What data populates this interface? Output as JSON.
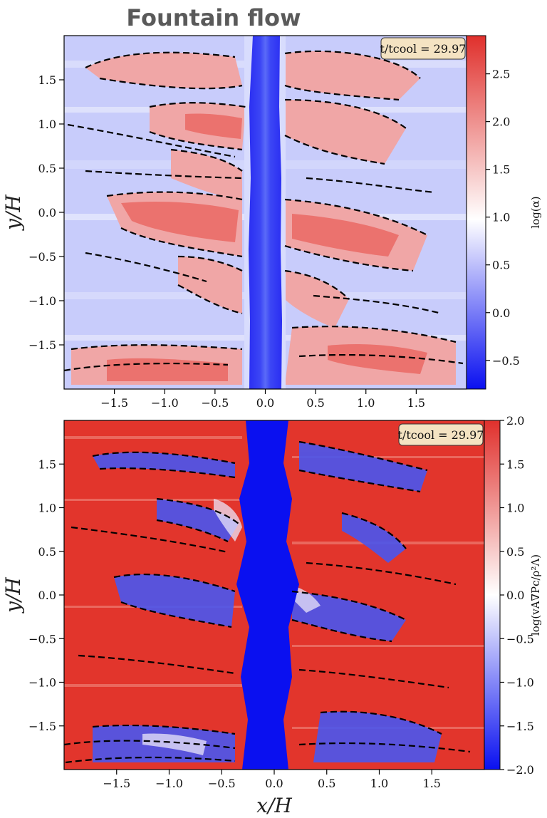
{
  "title": "Fountain flow",
  "chart_data": [
    {
      "type": "heatmap",
      "panel": "top",
      "xlim": [
        -2.0,
        2.0
      ],
      "ylim": [
        -2.0,
        2.0
      ],
      "x_ticks": [
        -1.5,
        -1.0,
        -0.5,
        0.0,
        0.5,
        1.0,
        1.5
      ],
      "y_ticks": [
        -1.5,
        -1.0,
        -0.5,
        0.0,
        0.5,
        1.0,
        1.5
      ],
      "xlabel": "",
      "ylabel": "y/H",
      "annotation": "t/tcool = 29.97",
      "colorbar": {
        "label": "log(α)",
        "range": [
          -0.8,
          2.9
        ],
        "ticks": [
          -0.5,
          0.0,
          0.5,
          1.0,
          1.5,
          2.0,
          2.5
        ],
        "colors": [
          "#0a10f0",
          "#ffffff",
          "#e0302c"
        ]
      },
      "contours": "dashed black"
    },
    {
      "type": "heatmap",
      "panel": "bottom",
      "xlim": [
        -2.0,
        2.0
      ],
      "ylim": [
        -2.0,
        2.0
      ],
      "x_ticks": [
        -1.5,
        -1.0,
        -0.5,
        0.0,
        0.5,
        1.0,
        1.5
      ],
      "y_ticks": [
        -1.5,
        -1.0,
        -0.5,
        0.0,
        0.5,
        1.0,
        1.5
      ],
      "xlabel": "x/H",
      "ylabel": "y/H",
      "annotation": "t/tcool = 29.97",
      "colorbar": {
        "label": "log(vA∇Pc/ρ²Λ)",
        "range": [
          -2.0,
          2.0
        ],
        "ticks": [
          -2.0,
          -1.5,
          -1.0,
          -0.5,
          0.0,
          0.5,
          1.0,
          1.5,
          2.0
        ],
        "colors": [
          "#0a10f0",
          "#ffffff",
          "#e0302c"
        ]
      },
      "contours": "dashed black"
    }
  ]
}
